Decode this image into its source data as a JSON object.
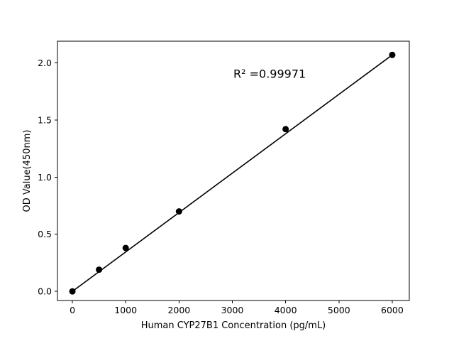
{
  "figure": {
    "background": "#ffffff"
  },
  "chart_data": {
    "type": "scatter",
    "title": "",
    "xlabel": "Human CYP27B1 Concentration (pg/mL)",
    "ylabel": "OD Value(450nm)",
    "x": [
      0,
      500,
      1000,
      2000,
      4000,
      6000
    ],
    "y": [
      0.0,
      0.19,
      0.38,
      0.7,
      1.42,
      2.07
    ],
    "xticks": [
      0,
      1000,
      2000,
      3000,
      4000,
      5000,
      6000
    ],
    "xtick_labels": [
      "0",
      "1000",
      "2000",
      "3000",
      "4000",
      "5000",
      "6000"
    ],
    "yticks": [
      0.0,
      0.5,
      1.0,
      1.5,
      2.0
    ],
    "ytick_labels": [
      "0.0",
      "0.5",
      "1.0",
      "1.5",
      "2.0"
    ],
    "xlim": [
      -280,
      6320
    ],
    "ylim": [
      -0.08,
      2.19
    ],
    "grid": false,
    "legend": null,
    "fit_line": {
      "type": "linear",
      "r_squared": "0.99971",
      "annotation": "R² =0.99971",
      "annotation_x": 3700,
      "annotation_y": 1.9
    },
    "marker_color": "#000000",
    "line_color": "#000000",
    "axis_color": "#000000"
  }
}
